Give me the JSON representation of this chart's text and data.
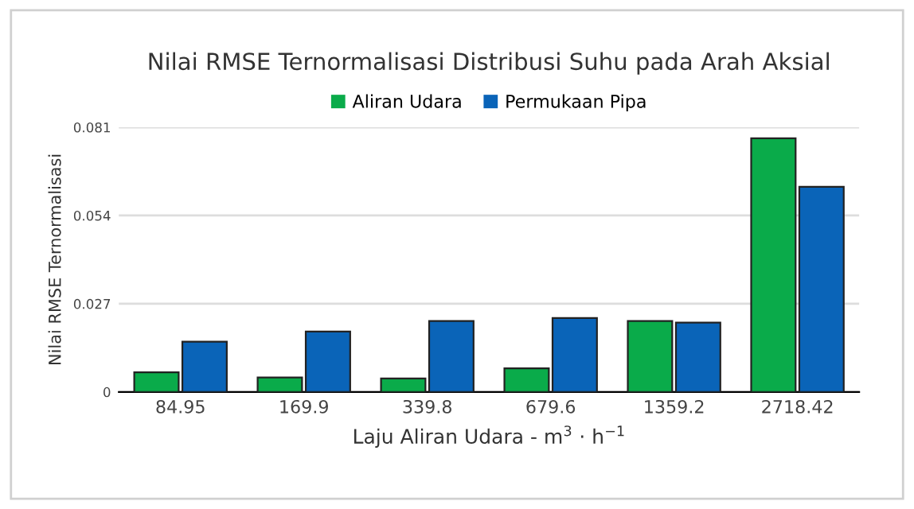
{
  "chart_data": {
    "type": "bar",
    "title": "Nilai RMSE Ternormalisasi Distribusi Suhu pada Arah Aksial",
    "xlabel": "Laju Aliran Udara - m$^{3}$ · h$^{−1}$",
    "ylabel": "Nilai RMSE Ternormalisasi",
    "categories": [
      "84.95",
      "169.9",
      "339.8",
      "679.6",
      "1359.2",
      "2718.42"
    ],
    "series": [
      {
        "name": "Aliran Udara",
        "color": "#0aab4a",
        "values": [
          0.006,
          0.0044,
          0.0041,
          0.0072,
          0.0217,
          0.0776
        ]
      },
      {
        "name": "Permukaan Pipa",
        "color": "#0a64b8",
        "values": [
          0.0154,
          0.0185,
          0.0217,
          0.0226,
          0.0212,
          0.0628
        ]
      }
    ],
    "ylim": [
      0,
      0.081
    ],
    "yticks": [
      0,
      0.027,
      0.054,
      0.081
    ],
    "grid": "y",
    "legend": "top"
  }
}
